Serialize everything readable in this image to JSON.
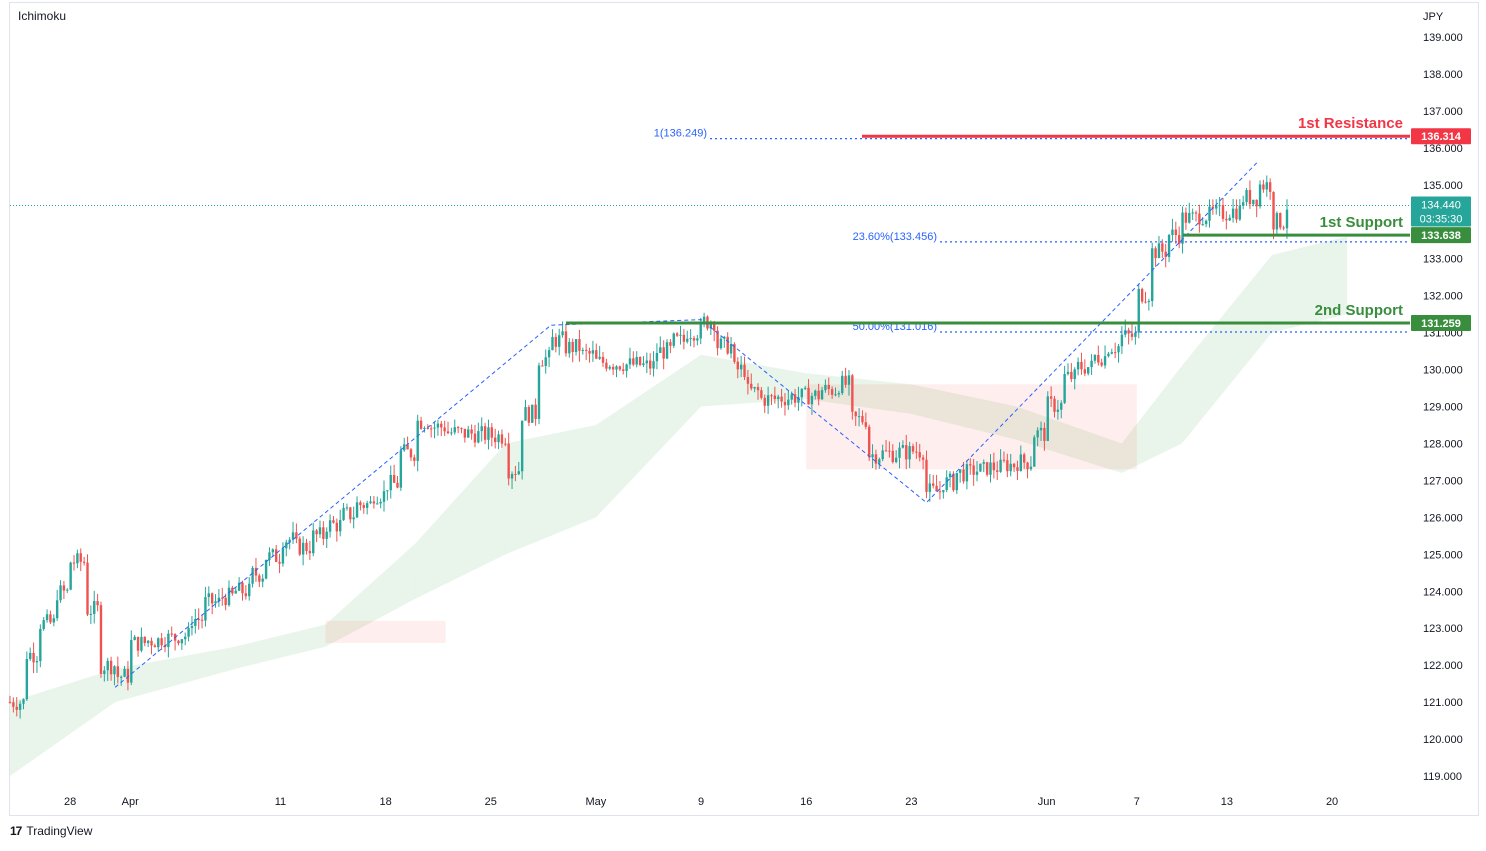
{
  "indicator_label": "Ichimoku",
  "currency_label": "JPY",
  "branding": {
    "logo_text": "TradingView"
  },
  "colors": {
    "up": "#26a69a",
    "down": "#ef5350",
    "resistance": "#f23645",
    "support": "#388e3c",
    "fib": "#2962ff",
    "cloud_bull": "#4caf50",
    "cloud_bear": "#f44336",
    "price_tag": "#26a69a"
  },
  "annotations": {
    "resistance_1": {
      "label": "1st Resistance",
      "value": "136.314",
      "price": 136.314
    },
    "support_1": {
      "label": "1st Support",
      "value": "133.638",
      "price": 133.638
    },
    "support_2": {
      "label": "2nd Support",
      "value": "131.259",
      "price": 131.259
    },
    "current_price": {
      "value": "134.440",
      "countdown": "03:35:30",
      "price": 134.44
    },
    "fib_levels": [
      {
        "label": "1(136.249)",
        "price": 136.249
      },
      {
        "label": "23.60%(133.456)",
        "price": 133.456
      },
      {
        "label": "50.00%(131.016)",
        "price": 131.016
      }
    ]
  },
  "chart_data": {
    "type": "candlestick",
    "instrument_quote": "JPY",
    "y_axis": {
      "ticks": [
        "139.000",
        "138.000",
        "137.000",
        "136.000",
        "135.000",
        "134.000",
        "133.000",
        "132.000",
        "131.000",
        "130.000",
        "129.000",
        "128.000",
        "127.000",
        "126.000",
        "125.000",
        "124.000",
        "123.000",
        "122.000",
        "121.000",
        "120.000",
        "119.000"
      ],
      "range": [
        118.5,
        139.5
      ]
    },
    "x_axis": {
      "ticks": [
        "28",
        "Apr",
        "11",
        "18",
        "25",
        "May",
        "9",
        "16",
        "23",
        "Jun",
        "7",
        "13",
        "20"
      ],
      "date_range": [
        "2022-03-24",
        "2022-06-23"
      ]
    },
    "price_path": [
      [
        "2022-03-24",
        121.0
      ],
      [
        "2022-03-25",
        122.3
      ],
      [
        "2022-03-28",
        124.8
      ],
      [
        "2022-03-29",
        123.5
      ],
      [
        "2022-03-30",
        122.0
      ],
      [
        "2022-03-31",
        121.7
      ],
      [
        "2022-04-01",
        122.6
      ],
      [
        "2022-04-04",
        122.8
      ],
      [
        "2022-04-06",
        123.7
      ],
      [
        "2022-04-08",
        124.0
      ],
      [
        "2022-04-11",
        125.4
      ],
      [
        "2022-04-12",
        125.2
      ],
      [
        "2022-04-14",
        125.8
      ],
      [
        "2022-04-18",
        126.9
      ],
      [
        "2022-04-20",
        128.6
      ],
      [
        "2022-04-22",
        128.3
      ],
      [
        "2022-04-25",
        128.2
      ],
      [
        "2022-04-26",
        127.3
      ],
      [
        "2022-04-28",
        130.3
      ],
      [
        "2022-04-29",
        130.8
      ],
      [
        "2022-05-02",
        130.2
      ],
      [
        "2022-05-05",
        130.1
      ],
      [
        "2022-05-06",
        130.5
      ],
      [
        "2022-05-09",
        131.3
      ],
      [
        "2022-05-11",
        130.0
      ],
      [
        "2022-05-12",
        129.4
      ],
      [
        "2022-05-13",
        129.2
      ],
      [
        "2022-05-16",
        129.3
      ],
      [
        "2022-05-18",
        129.6
      ],
      [
        "2022-05-20",
        127.7
      ],
      [
        "2022-05-23",
        127.8
      ],
      [
        "2022-05-24",
        126.7
      ],
      [
        "2022-05-26",
        127.2
      ],
      [
        "2022-05-30",
        127.5
      ],
      [
        "2022-06-02",
        129.8
      ],
      [
        "2022-06-06",
        130.9
      ],
      [
        "2022-06-08",
        133.2
      ],
      [
        "2022-06-10",
        134.1
      ],
      [
        "2022-06-13",
        134.3
      ],
      [
        "2022-06-15",
        135.0
      ],
      [
        "2022-06-16",
        134.0
      ],
      [
        "2022-06-17",
        134.44
      ]
    ],
    "cloud": [
      [
        "2022-03-24",
        119.0,
        121.0
      ],
      [
        "2022-03-31",
        121.0,
        121.9
      ],
      [
        "2022-04-08",
        121.9,
        122.5
      ],
      [
        "2022-04-14",
        122.5,
        123.1
      ],
      [
        "2022-04-20",
        123.8,
        125.3
      ],
      [
        "2022-04-26",
        125.0,
        128.0
      ],
      [
        "2022-05-02",
        126.0,
        128.5
      ],
      [
        "2022-05-09",
        129.0,
        130.4
      ],
      [
        "2022-05-16",
        129.2,
        129.9
      ],
      [
        "2022-05-23",
        128.8,
        129.6
      ],
      [
        "2022-05-30",
        128.1,
        129.0
      ],
      [
        "2022-06-06",
        127.2,
        128.0
      ],
      [
        "2022-06-10",
        128.0,
        130.1
      ],
      [
        "2022-06-16",
        131.0,
        133.1
      ],
      [
        "2022-06-21",
        131.5,
        133.6
      ]
    ],
    "zigzag": [
      [
        "2022-03-31",
        121.4
      ],
      [
        "2022-04-29",
        131.2
      ],
      [
        "2022-05-09",
        131.35
      ],
      [
        "2022-05-24",
        126.4
      ],
      [
        "2022-06-15",
        135.6
      ]
    ]
  }
}
